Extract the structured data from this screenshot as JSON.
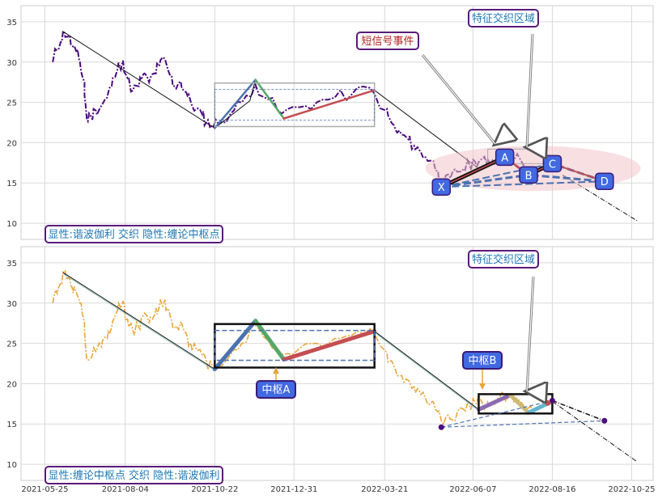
{
  "chart_data": [
    {
      "type": "line",
      "panel": "top",
      "ylim": [
        8,
        37
      ],
      "yticks": [
        10,
        15,
        20,
        25,
        30,
        35
      ],
      "grid": true,
      "price_color": "#4b0a7d",
      "price": [
        [
          "2021-06-01",
          30.0
        ],
        [
          "2021-06-04",
          31.5
        ],
        [
          "2021-06-08",
          32.5
        ],
        [
          "2021-06-11",
          33.8
        ],
        [
          "2021-06-15",
          33.2
        ],
        [
          "2021-06-18",
          32.0
        ],
        [
          "2021-06-22",
          31.2
        ],
        [
          "2021-06-25",
          30.0
        ],
        [
          "2021-06-29",
          27.5
        ],
        [
          "2021-07-01",
          23.0
        ],
        [
          "2021-07-05",
          23.2
        ],
        [
          "2021-07-09",
          24.0
        ],
        [
          "2021-07-14",
          24.6
        ],
        [
          "2021-07-19",
          25.6
        ],
        [
          "2021-07-23",
          27.0
        ],
        [
          "2021-07-28",
          29.0
        ],
        [
          "2021-08-02",
          30.2
        ],
        [
          "2021-08-06",
          28.0
        ],
        [
          "2021-08-11",
          26.5
        ],
        [
          "2021-08-16",
          27.0
        ],
        [
          "2021-08-20",
          28.5
        ],
        [
          "2021-08-25",
          27.5
        ],
        [
          "2021-08-30",
          28.6
        ],
        [
          "2021-09-03",
          29.5
        ],
        [
          "2021-09-08",
          30.4
        ],
        [
          "2021-09-13",
          28.2
        ],
        [
          "2021-09-17",
          27.0
        ],
        [
          "2021-09-22",
          27.6
        ],
        [
          "2021-09-27",
          26.2
        ],
        [
          "2021-10-01",
          25.0
        ],
        [
          "2021-10-06",
          24.2
        ],
        [
          "2021-10-11",
          23.5
        ],
        [
          "2021-10-15",
          22.6
        ],
        [
          "2021-10-20",
          22.2
        ],
        [
          "2021-10-25",
          22.4
        ]
      ],
      "price2": [
        [
          "2022-03-22",
          24.0
        ],
        [
          "2022-03-26",
          22.8
        ],
        [
          "2022-03-31",
          21.5
        ],
        [
          "2022-04-05",
          21.0
        ],
        [
          "2022-04-11",
          20.4
        ],
        [
          "2022-04-16",
          19.6
        ],
        [
          "2022-04-21",
          19.0
        ],
        [
          "2022-04-26",
          18.2
        ],
        [
          "2022-05-02",
          17.8
        ],
        [
          "2022-05-07",
          16.5
        ],
        [
          "2022-05-12",
          15.0
        ],
        [
          "2022-05-18",
          15.6
        ],
        [
          "2022-05-24",
          16.4
        ],
        [
          "2022-05-30",
          16.8
        ],
        [
          "2022-06-04",
          17.2
        ],
        [
          "2022-06-09",
          17.6
        ],
        [
          "2022-06-14",
          17.9
        ],
        [
          "2022-06-19",
          17.4
        ],
        [
          "2022-06-24",
          17.8
        ],
        [
          "2022-06-30",
          18.2
        ]
      ],
      "trend_line": [
        [
          "2021-06-10",
          33.8
        ],
        [
          "2021-10-22",
          21.8
        ],
        [
          "2021-11-22",
          25.2
        ],
        [
          "2021-11-27",
          27.8
        ],
        [
          "2021-12-22",
          23.0
        ],
        [
          "2022-03-12",
          26.5
        ],
        [
          "2022-06-12",
          16.8
        ]
      ],
      "projection": [
        [
          "2022-08-25",
          16.0
        ],
        [
          "2022-10-30",
          10.3
        ]
      ],
      "wave_segments": [
        {
          "from": [
            "2021-10-22",
            21.8
          ],
          "to": [
            "2021-11-27",
            27.8
          ],
          "color": "#4c72b0"
        },
        {
          "from": [
            "2021-11-27",
            27.8
          ],
          "to": [
            "2021-12-22",
            23.0
          ],
          "color": "#55a868"
        },
        {
          "from": [
            "2021-12-22",
            23.0
          ],
          "to": [
            "2022-03-12",
            26.5
          ],
          "color": "#c44e52"
        }
      ],
      "pivot_box": {
        "x0": "2021-10-22",
        "x1": "2022-03-12",
        "y0": 22.0,
        "y1": 27.4,
        "inner_y0": 22.8,
        "inner_y1": 26.6
      },
      "xabcd": {
        "X": [
          "2022-05-10",
          14.5
        ],
        "A": [
          "2022-07-05",
          18.2
        ],
        "B": [
          "2022-07-26",
          16.0
        ],
        "C": [
          "2022-08-16",
          17.4
        ],
        "D": [
          "2022-10-01",
          15.2
        ],
        "labels": [
          "X",
          "A",
          "B",
          "C",
          "D"
        ]
      },
      "ellipse": {
        "cx": "2022-07-30",
        "cy": 16.8,
        "rx_days": 95,
        "ry": 2.8
      },
      "annotations": {
        "short_signal": "短信号事件",
        "feature_zone": "特征交织区域",
        "caption": "显性:谐波伽利 交织 隐性:缠论中枢点"
      }
    },
    {
      "type": "line",
      "panel": "bottom",
      "ylim": [
        8,
        37
      ],
      "yticks": [
        10,
        15,
        20,
        25,
        30,
        35
      ],
      "grid": true,
      "price_color": "#e8a63a",
      "trend_line": [
        [
          "2021-06-10",
          33.8
        ],
        [
          "2021-10-22",
          21.8
        ],
        [
          "2021-11-27",
          27.8
        ],
        [
          "2021-12-22",
          23.0
        ],
        [
          "2022-03-12",
          26.5
        ],
        [
          "2022-06-12",
          16.8
        ],
        [
          "2022-07-10",
          18.6
        ],
        [
          "2022-07-26",
          16.4
        ],
        [
          "2022-08-16",
          17.8
        ]
      ],
      "projection": [
        [
          "2022-08-16",
          17.8
        ],
        [
          "2022-10-30",
          10.3
        ]
      ],
      "wave_segments": [
        {
          "from": [
            "2021-10-22",
            21.8
          ],
          "to": [
            "2021-11-27",
            27.8
          ],
          "color": "#4c72b0"
        },
        {
          "from": [
            "2021-11-27",
            27.8
          ],
          "to": [
            "2021-12-22",
            23.0
          ],
          "color": "#55a868"
        },
        {
          "from": [
            "2021-12-22",
            23.0
          ],
          "to": [
            "2022-03-12",
            26.5
          ],
          "color": "#c44e52"
        },
        {
          "from": [
            "2022-06-12",
            16.8
          ],
          "to": [
            "2022-07-10",
            18.6
          ],
          "color": "#8c6bb1"
        },
        {
          "from": [
            "2022-07-10",
            18.6
          ],
          "to": [
            "2022-07-26",
            16.4
          ],
          "color": "#ccb974"
        },
        {
          "from": [
            "2022-07-26",
            16.4
          ],
          "to": [
            "2022-08-16",
            17.8
          ],
          "color": "#64b5cd"
        }
      ],
      "pivot_A": {
        "x0": "2021-10-22",
        "x1": "2022-03-12",
        "y0": 22.0,
        "y1": 27.4,
        "inner_y0": 22.9,
        "inner_y1": 26.6,
        "label": "中枢A"
      },
      "pivot_B": {
        "x0": "2022-06-12",
        "x1": "2022-08-16",
        "y0": 16.3,
        "y1": 18.7,
        "label": "中枢B"
      },
      "harmonic_points": [
        [
          "2022-05-10",
          14.6
        ],
        [
          "2022-08-16",
          17.9
        ],
        [
          "2022-10-01",
          15.4
        ]
      ],
      "annotations": {
        "feature_zone": "特征交织区域",
        "caption": "显性:缠论中枢点 交织 隐性:谐波伽利"
      }
    }
  ],
  "x_axis": {
    "ticks": [
      "2021-05-25",
      "2021-08-04",
      "2021-10-22",
      "2021-12-31",
      "2022-03-21",
      "2022-06-07",
      "2022-08-16",
      "2022-10-25"
    ]
  }
}
